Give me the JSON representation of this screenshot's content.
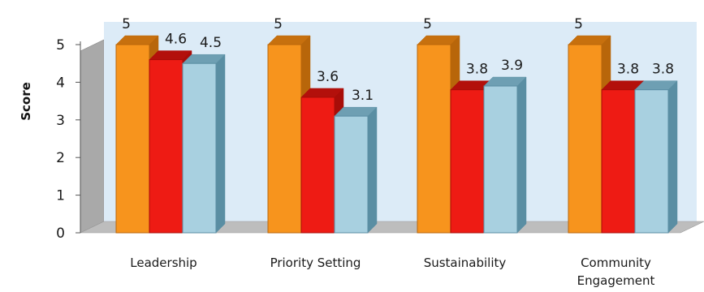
{
  "chart_data": {
    "type": "bar",
    "style": "3d-clustered",
    "ylabel": "Score",
    "ylim": [
      0,
      5
    ],
    "yticks": [
      "0",
      "1",
      "2",
      "3",
      "4",
      "5"
    ],
    "categories": [
      [
        "Leadership"
      ],
      [
        "Priority Setting"
      ],
      [
        "Sustainability"
      ],
      [
        "Community",
        "Engagement"
      ]
    ],
    "series": [
      {
        "values": [
          5,
          5,
          5,
          5
        ],
        "labels": [
          "5",
          "5",
          "5",
          "5"
        ],
        "color": "#F7941D",
        "side": "#B8660A",
        "top": "#C7700E"
      },
      {
        "values": [
          4.6,
          3.6,
          3.8,
          3.8
        ],
        "labels": [
          "4.6",
          "3.6",
          "3.8",
          "3.8"
        ],
        "color": "#EE1B14",
        "side": "#A80D08",
        "top": "#B3100B"
      },
      {
        "values": [
          4.5,
          3.1,
          3.9,
          3.8
        ],
        "labels": [
          "4.5",
          "3.1",
          "3.9",
          "3.8"
        ],
        "color": "#A8D0E0",
        "side": "#5A8EA3",
        "top": "#6E9FB3"
      }
    ],
    "grid": false,
    "legend": "none",
    "wall_color": "#DCEBF7",
    "floor_color": "#BDBDBD"
  }
}
